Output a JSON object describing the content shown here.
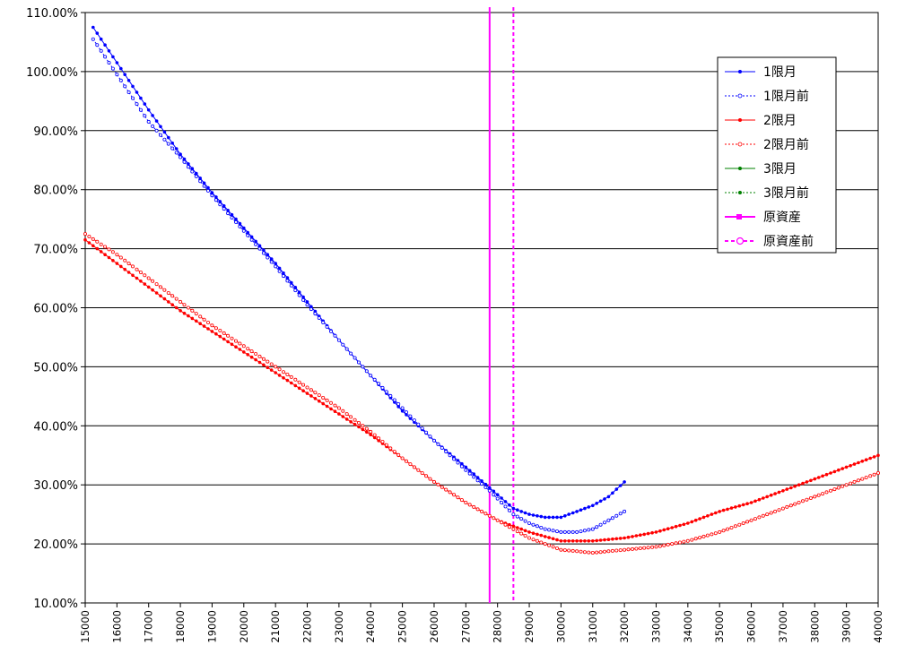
{
  "chart_data": {
    "type": "line",
    "title": "",
    "xlabel": "",
    "ylabel": "",
    "xlim": [
      15000,
      40000
    ],
    "ylim": [
      0.1,
      1.1
    ],
    "y_ticks": [
      "10.00%",
      "20.00%",
      "30.00%",
      "40.00%",
      "50.00%",
      "60.00%",
      "70.00%",
      "80.00%",
      "90.00%",
      "100.00%",
      "110.00%"
    ],
    "x_ticks": [
      "15000",
      "16000",
      "17000",
      "18000",
      "19000",
      "20000",
      "21000",
      "22000",
      "23000",
      "24000",
      "25000",
      "26000",
      "27000",
      "28000",
      "29000",
      "30000",
      "31000",
      "32000",
      "33000",
      "34000",
      "35000",
      "36000",
      "37000",
      "38000",
      "39000",
      "40000"
    ],
    "grid": "horizontal",
    "legend_position": "top-right",
    "series": [
      {
        "name": "1限月",
        "color": "#0000ff",
        "style": "solid",
        "marker": "filled-dot",
        "x": [
          15250,
          16000,
          17000,
          18000,
          19000,
          20000,
          21000,
          22000,
          23000,
          24000,
          25000,
          26000,
          27000,
          27750,
          28500,
          29000,
          29500,
          30000,
          30500,
          31000,
          31500,
          32000
        ],
        "y": [
          1.075,
          1.015,
          0.935,
          0.86,
          0.795,
          0.735,
          0.675,
          0.61,
          0.545,
          0.485,
          0.425,
          0.375,
          0.33,
          0.295,
          0.26,
          0.25,
          0.245,
          0.245,
          0.255,
          0.265,
          0.28,
          0.305
        ]
      },
      {
        "name": "1限月前",
        "color": "#0000ff",
        "style": "dotted",
        "marker": "open-dot",
        "x": [
          15250,
          16000,
          17000,
          18000,
          19000,
          20000,
          21000,
          22000,
          23000,
          24000,
          25000,
          26000,
          27000,
          27750,
          28500,
          29000,
          29500,
          30000,
          30500,
          31000,
          31500,
          32000
        ],
        "y": [
          1.055,
          0.995,
          0.915,
          0.855,
          0.79,
          0.73,
          0.67,
          0.605,
          0.545,
          0.485,
          0.43,
          0.375,
          0.325,
          0.29,
          0.25,
          0.235,
          0.225,
          0.22,
          0.22,
          0.225,
          0.24,
          0.255
        ]
      },
      {
        "name": "2限月",
        "color": "#ff0000",
        "style": "solid",
        "marker": "filled-dot",
        "x": [
          15000,
          16000,
          17000,
          18000,
          19000,
          20000,
          21000,
          22000,
          23000,
          24000,
          25000,
          26000,
          27000,
          28000,
          29000,
          30000,
          31000,
          32000,
          33000,
          34000,
          35000,
          36000,
          37000,
          38000,
          39000,
          40000
        ],
        "y": [
          0.715,
          0.675,
          0.635,
          0.595,
          0.56,
          0.525,
          0.49,
          0.455,
          0.42,
          0.385,
          0.345,
          0.305,
          0.27,
          0.24,
          0.22,
          0.205,
          0.205,
          0.21,
          0.22,
          0.235,
          0.255,
          0.27,
          0.29,
          0.31,
          0.33,
          0.35
        ]
      },
      {
        "name": "2限月前",
        "color": "#ff0000",
        "style": "dotted",
        "marker": "open-dot",
        "x": [
          15000,
          16000,
          17000,
          18000,
          19000,
          20000,
          21000,
          22000,
          23000,
          24000,
          25000,
          26000,
          27000,
          28000,
          29000,
          30000,
          31000,
          32000,
          33000,
          34000,
          35000,
          36000,
          37000,
          38000,
          39000,
          40000
        ],
        "y": [
          0.725,
          0.69,
          0.65,
          0.61,
          0.57,
          0.535,
          0.5,
          0.465,
          0.43,
          0.39,
          0.345,
          0.305,
          0.27,
          0.24,
          0.21,
          0.19,
          0.185,
          0.19,
          0.195,
          0.205,
          0.22,
          0.24,
          0.26,
          0.28,
          0.3,
          0.32
        ]
      },
      {
        "name": "3限月",
        "color": "#008000",
        "style": "solid",
        "marker": "filled-dot",
        "x": [],
        "y": []
      },
      {
        "name": "3限月前",
        "color": "#008000",
        "style": "dotted",
        "marker": "filled-dot",
        "x": [],
        "y": []
      },
      {
        "name": "原資産",
        "color": "#ff00ff",
        "style": "solid",
        "marker": "filled-square",
        "vertical_x": 27750
      },
      {
        "name": "原資産前",
        "color": "#ff00ff",
        "style": "dashed",
        "marker": "open-circle",
        "vertical_x": 28500
      }
    ]
  }
}
